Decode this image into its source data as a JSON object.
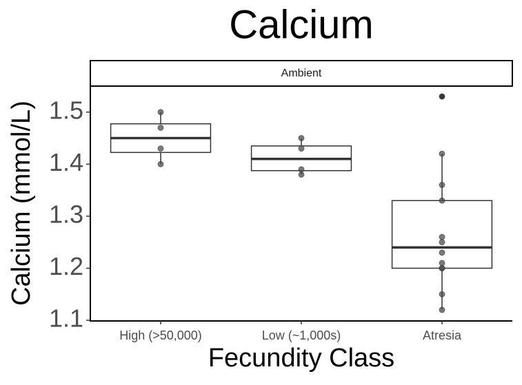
{
  "chart_data": {
    "type": "box",
    "title": "Calcium",
    "facet": "Ambient",
    "x_label": "Fecundity Class",
    "y_label": "Calcium (mmol/L)",
    "categories": [
      "High (>50,000)",
      "Low (~1,000s)",
      "Atresia"
    ],
    "boxes": [
      {
        "whisker_low": 1.4,
        "q1": 1.4225,
        "median": 1.45,
        "q3": 1.4775,
        "whisker_high": 1.5,
        "outliers": [],
        "points": [
          1.5,
          1.47,
          1.43,
          1.4
        ]
      },
      {
        "whisker_low": 1.38,
        "q1": 1.3875,
        "median": 1.41,
        "q3": 1.435,
        "whisker_high": 1.45,
        "outliers": [],
        "points": [
          1.45,
          1.43,
          1.39,
          1.38
        ]
      },
      {
        "whisker_low": 1.12,
        "q1": 1.2,
        "median": 1.24,
        "q3": 1.33,
        "whisker_high": 1.42,
        "outliers": [
          1.53
        ],
        "points": [
          1.53,
          1.42,
          1.36,
          1.33,
          1.26,
          1.25,
          1.23,
          1.21,
          1.2,
          1.2,
          1.15,
          1.12
        ]
      }
    ],
    "ylim": [
      1.1,
      1.55
    ],
    "yticks": [
      1.1,
      1.2,
      1.3,
      1.4,
      1.5
    ],
    "grid": false
  }
}
